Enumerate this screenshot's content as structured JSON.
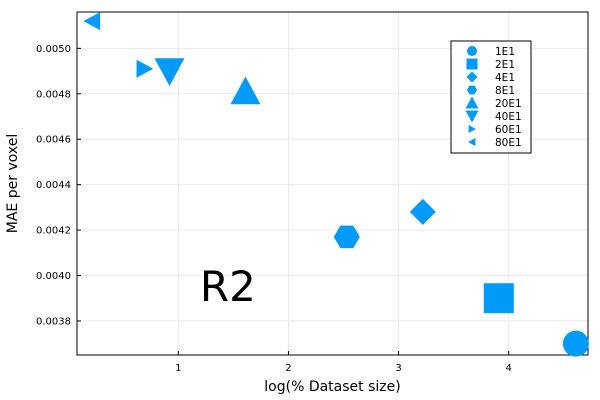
{
  "chart_data": {
    "type": "scatter",
    "xlabel": "log(% Dataset size)",
    "ylabel": "MAE per voxel",
    "xlim": [
      0.08,
      4.72
    ],
    "ylim": [
      0.00365,
      0.00516
    ],
    "xticks": [
      1,
      2,
      3,
      4
    ],
    "xtick_labels": [
      "1",
      "2",
      "3",
      "4"
    ],
    "yticks": [
      0.0038,
      0.004,
      0.0042,
      0.0044,
      0.0046,
      0.0048,
      0.005
    ],
    "ytick_labels": [
      "0.0038",
      "0.0040",
      "0.0042",
      "0.0044",
      "0.0046",
      "0.0048",
      "0.0050"
    ],
    "grid": true,
    "legend_position": "top-right",
    "marker_color": "#009AF9",
    "annotation": {
      "text": "R2",
      "x": 1.45,
      "y": 0.00395
    },
    "series": [
      {
        "name": "1E1",
        "marker": "circle",
        "x": [
          4.61
        ],
        "y": [
          0.0037
        ]
      },
      {
        "name": "2E1",
        "marker": "square",
        "x": [
          3.91
        ],
        "y": [
          0.0039
        ]
      },
      {
        "name": "4E1",
        "marker": "diamond",
        "x": [
          3.22
        ],
        "y": [
          0.00428
        ]
      },
      {
        "name": "8E1",
        "marker": "hexagon",
        "x": [
          2.53
        ],
        "y": [
          0.00417
        ]
      },
      {
        "name": "20E1",
        "marker": "triangle-up",
        "x": [
          1.61
        ],
        "y": [
          0.00481
        ]
      },
      {
        "name": "40E1",
        "marker": "triangle-down",
        "x": [
          0.92
        ],
        "y": [
          0.0049
        ]
      },
      {
        "name": "60E1",
        "marker": "triangle-right",
        "x": [
          0.69
        ],
        "y": [
          0.00491
        ]
      },
      {
        "name": "80E1",
        "marker": "triangle-left",
        "x": [
          0.22
        ],
        "y": [
          0.00512
        ]
      }
    ]
  }
}
